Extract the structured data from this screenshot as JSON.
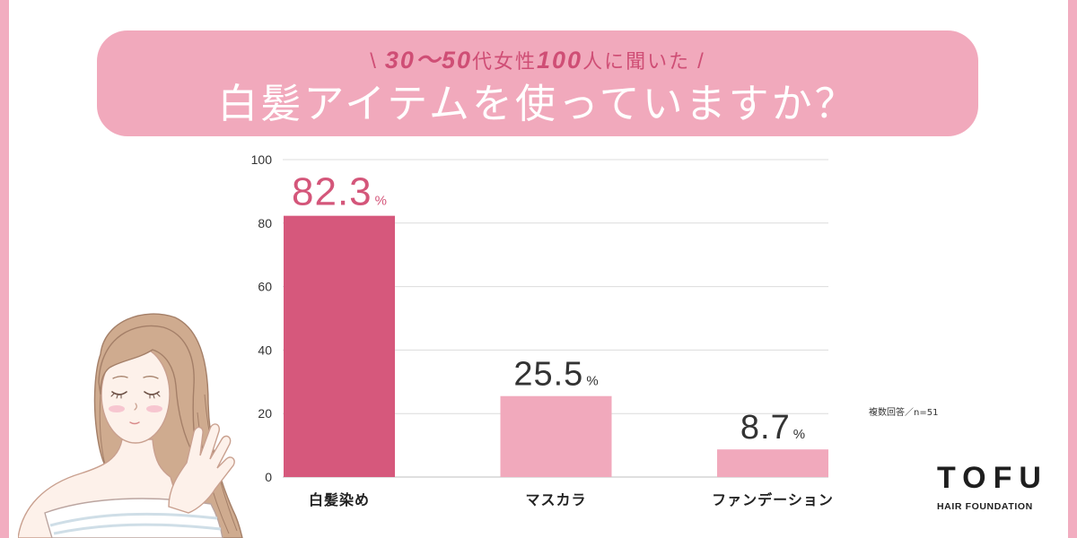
{
  "header": {
    "subtitle": {
      "slash_left": "\\",
      "num_1": "30〜50",
      "text_1": "代女性",
      "num_2": "100",
      "text_2": "人に聞いた",
      "slash_right": "/"
    }
  },
  "chart_data": {
    "type": "bar",
    "title": "白髪アイテムを使っていますか？",
    "categories": [
      "白髪染め",
      "マスカラ",
      "ファンデーション"
    ],
    "values": [
      82.3,
      25.5,
      8.7
    ],
    "value_labels": [
      "82.3",
      "25.5",
      "8.7"
    ],
    "unit": "%",
    "yticks": [
      100,
      80,
      60,
      40,
      20,
      0
    ],
    "ylim": [
      0,
      100
    ],
    "grid": true,
    "xlabel": "",
    "ylabel": "",
    "colors": [
      "#d6587c",
      "#f1a9bc",
      "#f1a9bc"
    ],
    "label_colors": [
      "#d4567a",
      "#333333",
      "#333333"
    ]
  },
  "note": {
    "text": "複数回答／n=51"
  },
  "logo": {
    "name": "TOFU",
    "tagline": "HAIR FOUNDATION"
  },
  "theme": {
    "frame": "#f2adc0",
    "banner": "#f1a9bc",
    "accent": "#cf4e75",
    "text": "#333333"
  }
}
